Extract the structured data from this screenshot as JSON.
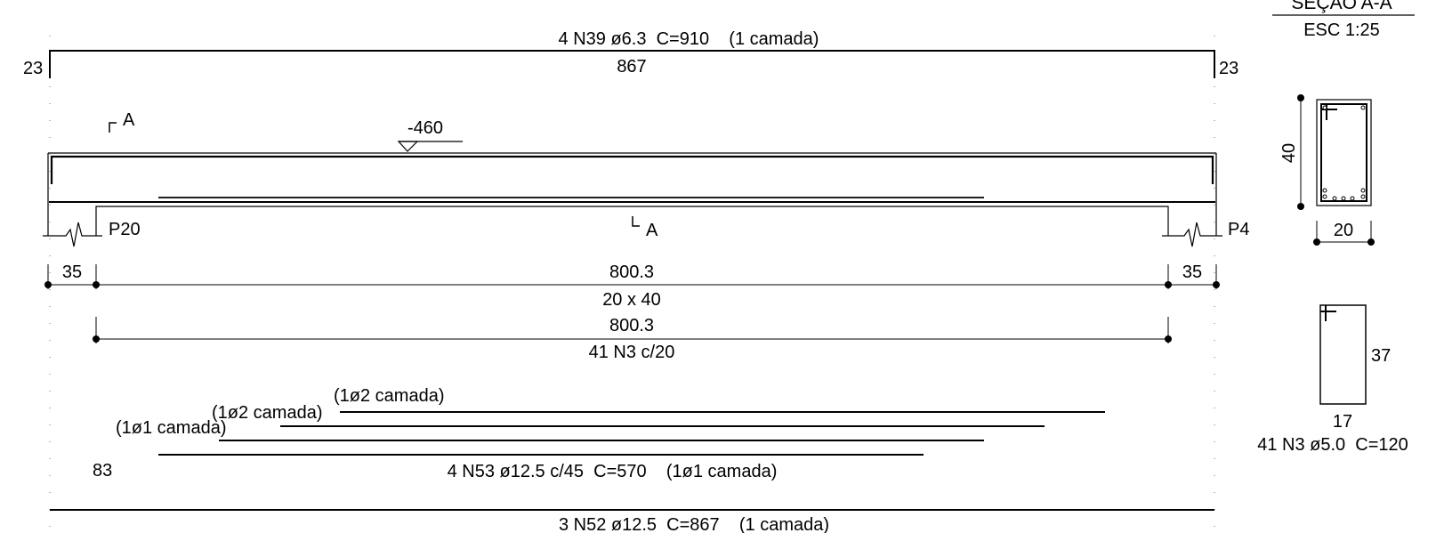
{
  "section": {
    "title": "SEÇÃO A-A",
    "scale": "ESC 1:25",
    "height_dim": "40",
    "width_dim": "20"
  },
  "top_bar": {
    "label": "4 N39 ø6.3  C=910    (1 camada)",
    "length": "867",
    "left_hook": "23",
    "right_hook": "23"
  },
  "cut_marks": {
    "top": "A",
    "bottom": "A"
  },
  "level": "-460",
  "supports": {
    "left": "P20",
    "right": "P4"
  },
  "dims": {
    "left_support": "35",
    "span": "800.3",
    "right_support": "35",
    "beam_size": "20 x 40",
    "stirrup_span": "800.3",
    "stirrup_label": "41 N3 c/20"
  },
  "bottom_layers": {
    "layer3_label": "(1ø2 camada)",
    "layer2_label": "(1ø2 camada)",
    "layer1_label": "(1ø1 camada)",
    "offset": "83",
    "bar_label": "4 N53 ø12.5 c/45  C=570    (1ø1 camada)"
  },
  "bottom_main_bar": {
    "label": "3 N52 ø12.5  C=867    (1 camada)"
  },
  "stirrup_detail": {
    "height": "37",
    "width": "17",
    "label": "41 N3 ø5.0  C=120"
  }
}
